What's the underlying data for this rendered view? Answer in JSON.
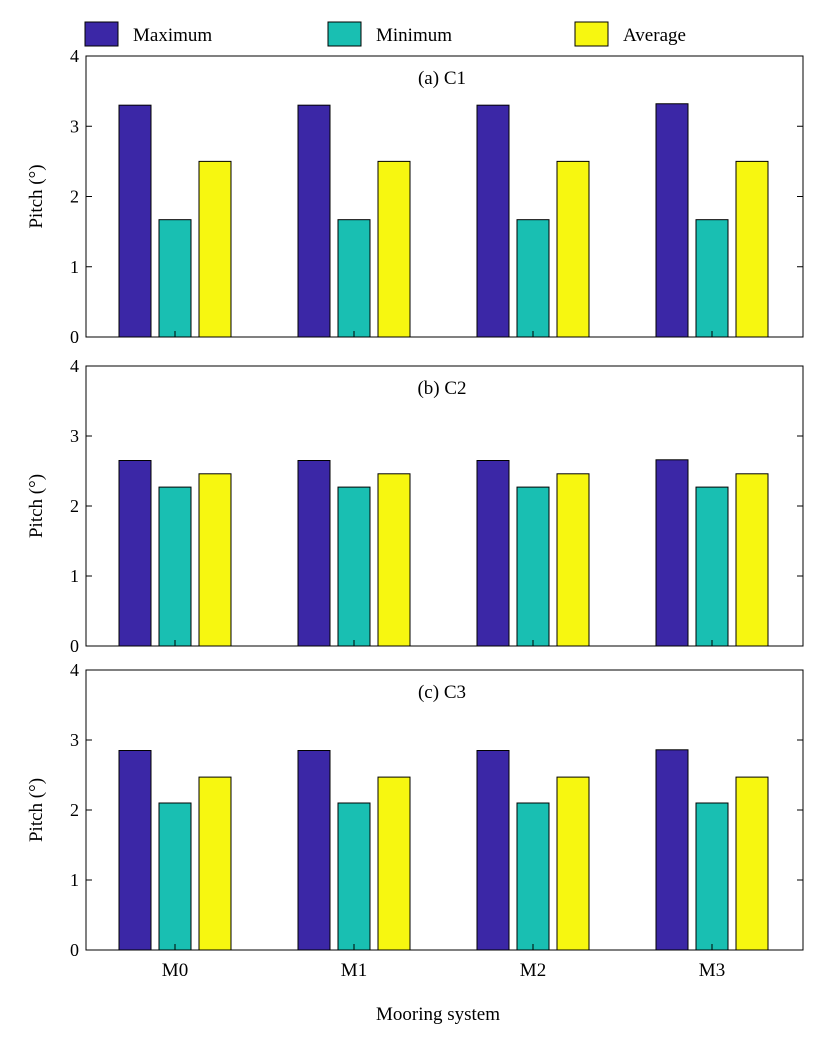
{
  "legend": {
    "placement": "top",
    "items": [
      {
        "label": "Maximum",
        "color": "#3b27a6"
      },
      {
        "label": "Minimum",
        "color": "#19bfb2"
      },
      {
        "label": "Average",
        "color": "#f7f710"
      }
    ]
  },
  "xlabel": "Mooring system",
  "chart_data": [
    {
      "type": "bar",
      "title": "(a) C1",
      "categories": [
        "M0",
        "M1",
        "M2",
        "M3"
      ],
      "series": [
        {
          "name": "Maximum",
          "values": [
            3.3,
            3.3,
            3.3,
            3.32
          ]
        },
        {
          "name": "Minimum",
          "values": [
            1.67,
            1.67,
            1.67,
            1.67
          ]
        },
        {
          "name": "Average",
          "values": [
            2.5,
            2.5,
            2.5,
            2.5
          ]
        }
      ],
      "xlabel": "",
      "ylabel": "Pitch (°)",
      "ylim": [
        0,
        4
      ],
      "yticks": [
        "0",
        "1",
        "2",
        "3",
        "4"
      ],
      "grid": false
    },
    {
      "type": "bar",
      "title": "(b) C2",
      "categories": [
        "M0",
        "M1",
        "M2",
        "M3"
      ],
      "series": [
        {
          "name": "Maximum",
          "values": [
            2.65,
            2.65,
            2.65,
            2.66
          ]
        },
        {
          "name": "Minimum",
          "values": [
            2.27,
            2.27,
            2.27,
            2.27
          ]
        },
        {
          "name": "Average",
          "values": [
            2.46,
            2.46,
            2.46,
            2.46
          ]
        }
      ],
      "xlabel": "",
      "ylabel": "Pitch (°)",
      "ylim": [
        0,
        4
      ],
      "yticks": [
        "0",
        "1",
        "2",
        "3",
        "4"
      ],
      "grid": false
    },
    {
      "type": "bar",
      "title": "(c) C3",
      "categories": [
        "M0",
        "M1",
        "M2",
        "M3"
      ],
      "series": [
        {
          "name": "Maximum",
          "values": [
            2.85,
            2.85,
            2.85,
            2.86
          ]
        },
        {
          "name": "Minimum",
          "values": [
            2.1,
            2.1,
            2.1,
            2.1
          ]
        },
        {
          "name": "Average",
          "values": [
            2.47,
            2.47,
            2.47,
            2.47
          ]
        }
      ],
      "xlabel": "Mooring system",
      "ylabel": "Pitch (°)",
      "ylim": [
        0,
        4
      ],
      "yticks": [
        "0",
        "1",
        "2",
        "3",
        "4"
      ],
      "grid": false
    }
  ]
}
